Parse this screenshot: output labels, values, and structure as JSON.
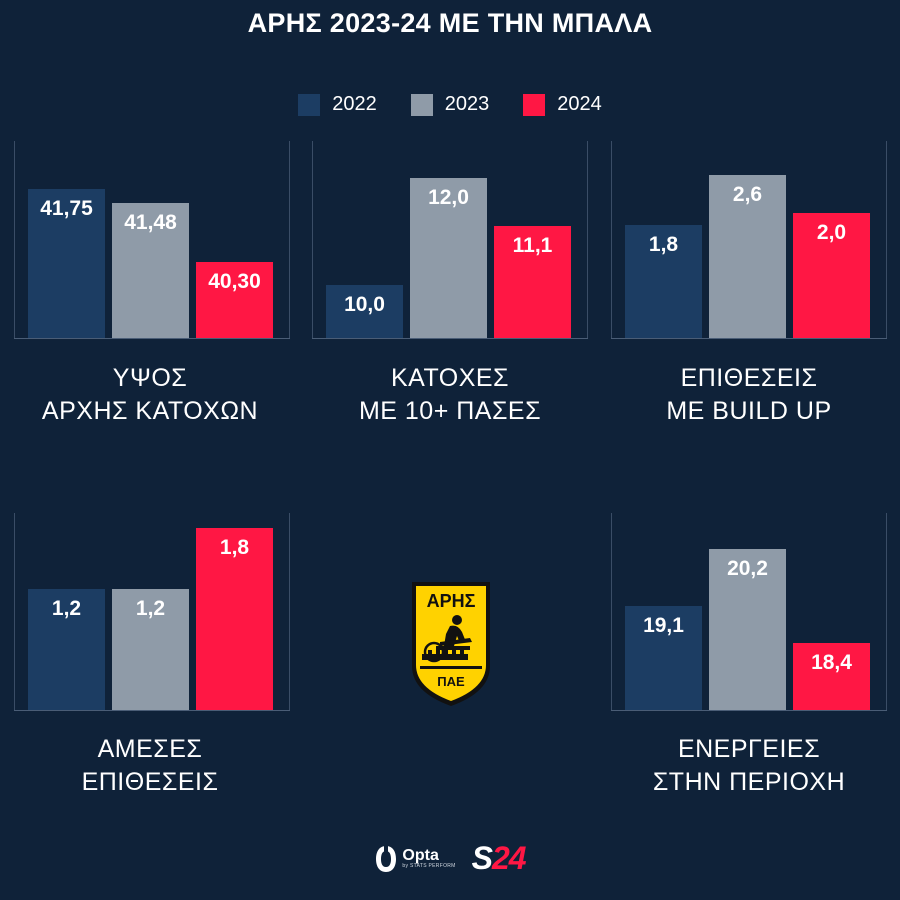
{
  "title": "ΑΡΗΣ 2023-24 ΜΕ ΤΗΝ ΜΠΑΛΑ",
  "legend": [
    {
      "label": "2022",
      "color": "#1c3d63"
    },
    {
      "label": "2023",
      "color": "#8f9ba8"
    },
    {
      "label": "2024",
      "color": "#ff1744"
    }
  ],
  "chart_data": [
    {
      "type": "bar",
      "title": "ΥΨΟΣ ΑΡΧΗΣ ΚΑΤΟΧΩΝ",
      "title_lines": [
        "ΥΨΟΣ",
        "ΑΡΧΗΣ ΚΑΤΟΧΩΝ"
      ],
      "categories": [
        "2022",
        "2023",
        "2024"
      ],
      "values": [
        41.75,
        41.48,
        40.3
      ],
      "labels": [
        "41,75",
        "41,48",
        "40,30"
      ],
      "ylim": [
        38.8,
        42.7
      ]
    },
    {
      "type": "bar",
      "title": "ΚΑΤΟΧΕΣ ΜΕ 10+ ΠΑΣΕΣ",
      "title_lines": [
        "ΚΑΤΟΧΕΣ",
        "ΜΕ 10+ ΠΑΣΕΣ"
      ],
      "categories": [
        "2022",
        "2023",
        "2024"
      ],
      "values": [
        10.0,
        12.0,
        11.1
      ],
      "labels": [
        "10,0",
        "12,0",
        "11,1"
      ],
      "ylim": [
        9.0,
        12.7
      ]
    },
    {
      "type": "bar",
      "title": "ΕΠΙΘΕΣΕΙΣ ΜΕ BUILD UP",
      "title_lines": [
        "ΕΠΙΘΕΣΕΙΣ",
        "ΜΕ BUILD UP"
      ],
      "categories": [
        "2022",
        "2023",
        "2024"
      ],
      "values": [
        1.8,
        2.6,
        2.0
      ],
      "labels": [
        "1,8",
        "2,6",
        "2,0"
      ],
      "ylim": [
        0.0,
        3.15
      ]
    },
    {
      "type": "bar",
      "title": "ΑΜΕΣΕΣ ΕΠΙΘΕΣΕΙΣ",
      "title_lines": [
        "ΑΜΕΣΕΣ",
        "ΕΠΙΘΕΣΕΙΣ"
      ],
      "categories": [
        "2022",
        "2023",
        "2024"
      ],
      "values": [
        1.2,
        1.2,
        1.8
      ],
      "labels": [
        "1,2",
        "1,2",
        "1,8"
      ],
      "ylim": [
        0.0,
        1.95
      ]
    },
    {
      "type": "bar",
      "title": "ΕΝΕΡΓΕΙΕΣ ΣΤΗΝ ΠΕΡΙΟΧΗ",
      "title_lines": [
        "ΕΝΕΡΓΕΙΕΣ",
        "ΣΤΗΝ ΠΕΡΙΟΧΗ"
      ],
      "categories": [
        "2022",
        "2023",
        "2024"
      ],
      "values": [
        19.1,
        20.2,
        18.4
      ],
      "labels": [
        "19,1",
        "20,2",
        "18,4"
      ],
      "ylim": [
        17.1,
        20.9
      ]
    }
  ],
  "logo": {
    "top_text": "ΑΡΗΣ",
    "bottom_text": "ΠΑΕ",
    "colors": [
      "#ffd200",
      "#000000"
    ]
  },
  "footer": {
    "opta": "Opta",
    "opta_sub": "by STATS PERFORM",
    "brand_s": "S",
    "brand_24": "24"
  }
}
